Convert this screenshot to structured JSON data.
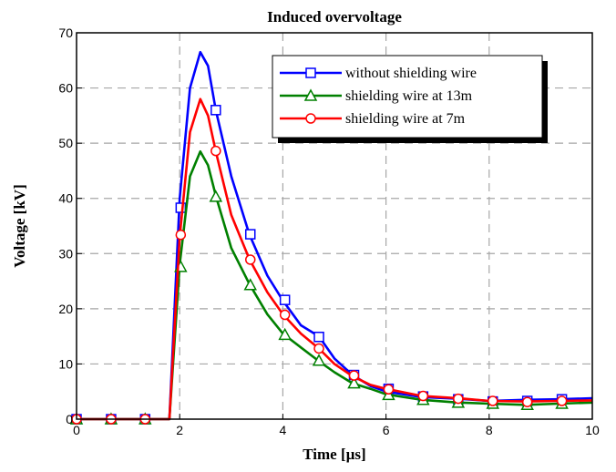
{
  "chart_data": {
    "type": "line",
    "title": "Induced overvoltage",
    "xlabel": "Time [µs]",
    "ylabel": "Voltage [kV]",
    "xlim": [
      0,
      10
    ],
    "ylim": [
      0,
      70
    ],
    "xticks": [
      0,
      2,
      4,
      6,
      8,
      10
    ],
    "yticks": [
      0,
      10,
      20,
      30,
      40,
      50,
      60,
      70
    ],
    "grid": true,
    "legend_position": "top-right",
    "series": [
      {
        "name": "without shielding wire",
        "color": "#0000ff",
        "marker": "square",
        "x": [
          0,
          1.8,
          2.0,
          2.2,
          2.4,
          2.55,
          2.7,
          3.0,
          3.35,
          3.7,
          4.0,
          4.35,
          4.7,
          5.0,
          5.35,
          5.7,
          6.0,
          6.7,
          7.4,
          8.0,
          8.7,
          9.35,
          10
        ],
        "y": [
          0,
          0,
          40,
          60,
          66.5,
          64,
          56,
          44,
          33.5,
          26,
          21.5,
          17,
          15,
          11,
          8,
          6,
          5,
          4,
          3.7,
          3.3,
          3.5,
          3.6,
          3.8
        ],
        "marker_x": [
          0,
          0.67,
          1.33,
          2.02,
          2.7,
          3.37,
          4.04,
          4.7,
          5.38,
          6.05,
          6.72,
          7.4,
          8.07,
          8.74,
          9.41
        ],
        "marker_y": [
          0,
          0,
          0,
          38.3,
          56,
          33.5,
          21.6,
          14.9,
          8,
          5.5,
          4.1,
          3.6,
          3.2,
          3.3,
          3.6
        ]
      },
      {
        "name": "shielding wire at 13m",
        "color": "#008000",
        "marker": "triangle",
        "x": [
          0,
          1.8,
          2.0,
          2.2,
          2.4,
          2.55,
          2.7,
          3.0,
          3.35,
          3.7,
          4.0,
          4.35,
          4.7,
          5.0,
          5.35,
          5.7,
          6.0,
          6.7,
          7.4,
          8.0,
          8.7,
          9.35,
          10
        ],
        "y": [
          0,
          0,
          28,
          44,
          48.5,
          46,
          40.5,
          31,
          24.5,
          19,
          15.5,
          13,
          10.5,
          8.5,
          6.5,
          5.5,
          4.5,
          3.5,
          3.0,
          2.8,
          2.6,
          2.8,
          3.0
        ],
        "marker_x": [
          0,
          0.67,
          1.33,
          2.02,
          2.7,
          3.37,
          4.04,
          4.7,
          5.38,
          6.05,
          6.72,
          7.4,
          8.07,
          8.74,
          9.41
        ],
        "marker_y": [
          0,
          0,
          0,
          27.6,
          40.3,
          24.3,
          15.3,
          10.6,
          6.5,
          4.4,
          3.5,
          3.0,
          2.8,
          2.6,
          2.8
        ]
      },
      {
        "name": "shielding wire at 7m",
        "color": "#ff0000",
        "marker": "circle",
        "x": [
          0,
          1.8,
          2.0,
          2.2,
          2.4,
          2.55,
          2.7,
          3.0,
          3.35,
          3.7,
          4.0,
          4.35,
          4.7,
          5.0,
          5.35,
          5.7,
          6.0,
          6.7,
          7.4,
          8.0,
          8.7,
          9.35,
          10
        ],
        "y": [
          0,
          0,
          33,
          52,
          58,
          55,
          48.5,
          37,
          29,
          23,
          19,
          15.5,
          12.8,
          10,
          7.8,
          6.2,
          5.5,
          4.2,
          3.8,
          3.3,
          3.2,
          3.3,
          3.4
        ],
        "marker_x": [
          0,
          0.67,
          1.33,
          2.02,
          2.7,
          3.37,
          4.04,
          4.7,
          5.38,
          6.05,
          6.72,
          7.4,
          8.07,
          8.74,
          9.41
        ],
        "marker_y": [
          0,
          0,
          0,
          33.4,
          48.6,
          28.9,
          18.9,
          12.8,
          7.9,
          5.4,
          4.2,
          3.7,
          3.3,
          3.1,
          3.3
        ]
      }
    ]
  }
}
